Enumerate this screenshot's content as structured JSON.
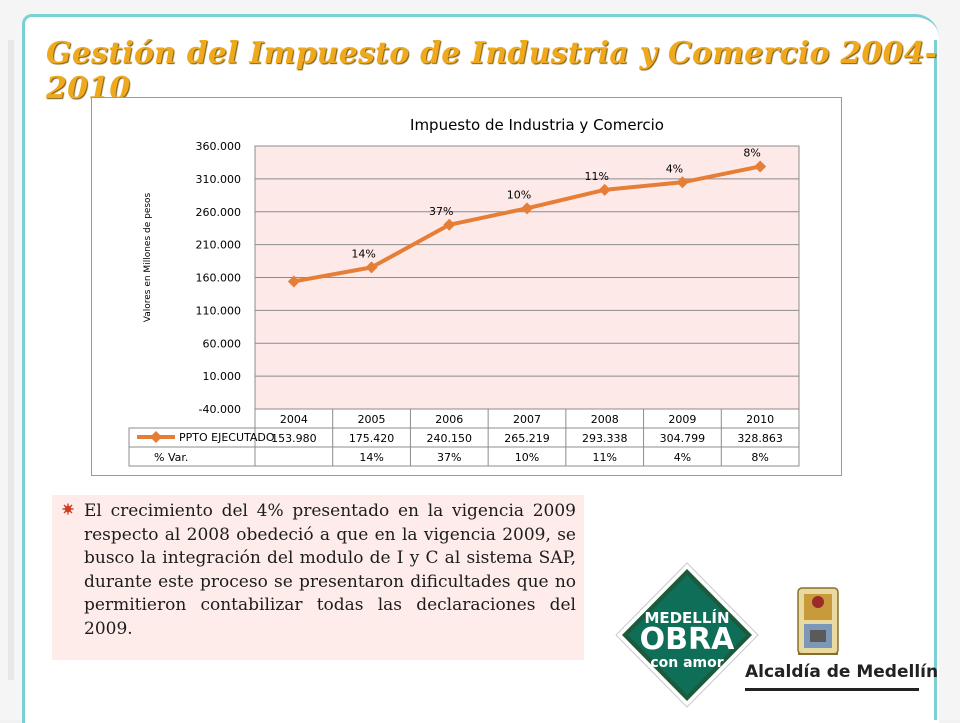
{
  "slide": {
    "title": "Gestión del Impuesto de Industria y Comercio 2004-2010",
    "note": "El crecimiento del 4% presentado en la vigencia 2009 respecto al 2008 obedeció a que en la vigencia 2009, se busco la integración del modulo de I y C al sistema SAP, durante este proceso se presentaron dificultades que no permitieron contabilizar todas las declaraciones del 2009.",
    "logo_obra_text": [
      "MEDELLÍN",
      "OBRA",
      "con amor"
    ],
    "logo_alcaldia_text": "Alcaldía de Medellín"
  },
  "colors": {
    "title": "#f0a91c",
    "line": "#e57e37",
    "plot_bg": "#fde9e7",
    "frame": "#7ad0d2",
    "obra_green": "#1b5b3b",
    "obra_bg": "#0d6c55"
  },
  "chart_data": {
    "type": "line",
    "title": "Impuesto de Industria y Comercio",
    "ylabel": "Valores en Millones de pesos",
    "xlabel": "",
    "categories": [
      "2004",
      "2005",
      "2006",
      "2007",
      "2008",
      "2009",
      "2010"
    ],
    "series": [
      {
        "name": "PPTO EJECUTADO",
        "values": [
          153980,
          175420,
          240150,
          265219,
          293338,
          304799,
          328863
        ],
        "labels": [
          "153.980",
          "175.420",
          "240.150",
          "265.219",
          "293.338",
          "304.799",
          "328.863"
        ]
      }
    ],
    "pct_row_label": "% Var.",
    "pct_var": [
      "",
      "14%",
      "37%",
      "10%",
      "11%",
      "4%",
      "8%"
    ],
    "point_labels": [
      "",
      "14%",
      "37%",
      "10%",
      "11%",
      "4%",
      "8%"
    ],
    "yticks": [
      -40000,
      10000,
      60000,
      110000,
      160000,
      210000,
      260000,
      310000,
      360000
    ],
    "ytick_labels": [
      "-40.000",
      "10.000",
      "60.000",
      "110.000",
      "160.000",
      "210.000",
      "260.000",
      "310.000",
      "360.000"
    ],
    "ylim": [
      -40000,
      360000
    ],
    "grid": true,
    "legend": "data-table"
  }
}
